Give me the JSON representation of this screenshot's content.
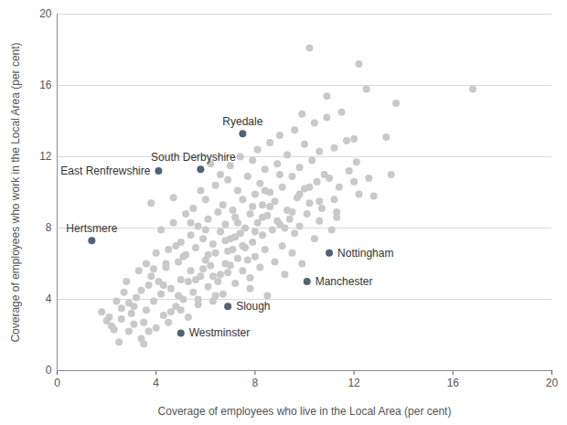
{
  "chart_data": {
    "type": "scatter",
    "x_label": "Coverage of employees who live in the Local Area (per cent)",
    "y_label": "Coverage of employees who work in the Local Area (per cent)",
    "xlim": [
      0,
      20
    ],
    "ylim": [
      0,
      20
    ],
    "xticks": [
      0,
      4,
      8,
      12,
      16,
      20
    ],
    "yticks": [
      0,
      4,
      8,
      12,
      16,
      20
    ],
    "grid": "y",
    "series": [
      {
        "color": "#c9c9c9",
        "marker": "circle",
        "x": [
          1.8,
          2.0,
          2.1,
          2.2,
          2.3,
          2.5,
          2.4,
          2.6,
          2.7,
          2.8,
          2.9,
          3.0,
          3.1,
          3.2,
          3.3,
          3.4,
          3.5,
          3.5,
          3.6,
          3.6,
          3.7,
          3.8,
          3.8,
          3.9,
          4.0,
          4.0,
          4.1,
          4.2,
          4.2,
          4.3,
          4.4,
          4.5,
          4.5,
          4.6,
          4.7,
          4.7,
          4.8,
          4.9,
          5.0,
          5.0,
          5.1,
          5.2,
          5.2,
          5.3,
          5.4,
          5.4,
          5.5,
          5.5,
          5.6,
          5.7,
          5.7,
          5.8,
          5.8,
          5.9,
          6.0,
          6.0,
          6.1,
          6.1,
          6.2,
          6.2,
          6.3,
          6.3,
          6.4,
          6.4,
          6.5,
          6.5,
          6.6,
          6.6,
          6.7,
          6.7,
          6.8,
          6.8,
          6.9,
          6.9,
          7.0,
          7.0,
          7.1,
          7.1,
          7.2,
          7.2,
          7.3,
          7.3,
          7.4,
          7.4,
          7.5,
          7.5,
          7.6,
          7.6,
          7.7,
          7.8,
          7.8,
          7.9,
          7.9,
          8.0,
          8.0,
          8.1,
          8.1,
          8.2,
          8.2,
          8.3,
          8.3,
          8.4,
          8.4,
          8.5,
          8.5,
          8.6,
          8.6,
          8.7,
          8.8,
          8.8,
          8.9,
          9.0,
          9.0,
          9.1,
          9.1,
          9.2,
          9.3,
          9.3,
          9.4,
          9.5,
          9.5,
          9.6,
          9.6,
          9.7,
          9.8,
          9.8,
          9.9,
          9.9,
          10.0,
          10.0,
          10.1,
          10.2,
          10.2,
          10.3,
          10.4,
          10.4,
          10.5,
          10.6,
          10.6,
          10.7,
          10.8,
          10.9,
          10.9,
          11.0,
          11.1,
          11.2,
          11.3,
          11.3,
          11.4,
          11.5,
          11.7,
          12.0,
          12.0,
          12.2,
          12.2,
          12.5,
          12.6,
          12.8,
          13.3,
          13.5,
          13.7,
          16.8,
          12.1,
          11.8,
          4.4,
          4.8,
          5.1,
          5.3,
          5.6,
          5.9,
          6.1,
          6.4,
          6.6,
          6.9,
          7.2,
          7.5,
          7.7,
          8.0,
          8.3,
          8.6,
          8.9,
          9.2,
          9.5,
          3.9,
          3.4,
          3.1,
          2.9,
          4.3,
          5.0,
          5.7,
          6.3,
          7.0,
          7.8,
          2.6,
          3.7,
          4.6,
          6.8,
          7.3,
          7.9,
          8.4,
          6.0,
          5.4,
          4.9,
          9.0,
          9.8,
          10.2,
          11.2,
          10.6
        ],
        "values": [
          3.3,
          2.8,
          3.0,
          2.5,
          2.3,
          1.6,
          3.9,
          3.5,
          4.4,
          5.0,
          3.8,
          3.2,
          2.6,
          4.1,
          5.6,
          1.8,
          1.5,
          2.7,
          3.4,
          6.0,
          4.8,
          5.3,
          9.4,
          3.9,
          2.4,
          6.6,
          5.0,
          7.9,
          4.3,
          3.1,
          5.8,
          6.8,
          2.7,
          4.6,
          8.3,
          9.7,
          3.6,
          6.1,
          7.2,
          5.1,
          4.0,
          8.8,
          6.5,
          3.0,
          7.6,
          5.6,
          9.1,
          4.4,
          6.9,
          8.1,
          3.7,
          10.1,
          5.3,
          7.4,
          6.2,
          9.6,
          4.7,
          8.5,
          11.6,
          5.9,
          7.1,
          3.9,
          10.4,
          6.6,
          8.9,
          5.0,
          7.8,
          11.0,
          4.3,
          9.3,
          6.0,
          8.2,
          10.7,
          5.5,
          7.4,
          11.5,
          6.8,
          9.0,
          4.9,
          8.6,
          10.1,
          6.3,
          7.7,
          12.0,
          5.6,
          9.6,
          8.0,
          6.9,
          10.9,
          4.6,
          8.8,
          7.2,
          11.8,
          9.9,
          6.4,
          12.4,
          8.3,
          5.8,
          10.5,
          7.6,
          9.3,
          11.3,
          6.8,
          8.7,
          4.2,
          10.0,
          12.8,
          7.9,
          9.5,
          6.1,
          11.6,
          8.2,
          13.2,
          10.3,
          7.0,
          5.4,
          9.0,
          12.1,
          8.5,
          10.9,
          6.6,
          13.5,
          7.7,
          9.7,
          11.4,
          8.1,
          14.4,
          6.0,
          10.2,
          12.7,
          8.8,
          18.1,
          9.4,
          11.8,
          7.4,
          13.9,
          10.6,
          8.4,
          12.3,
          9.1,
          11.0,
          15.4,
          14.2,
          10.8,
          7.9,
          12.5,
          8.9,
          8.6,
          10.3,
          14.5,
          12.9,
          13.0,
          10.6,
          17.2,
          9.9,
          15.8,
          10.8,
          9.8,
          13.1,
          11.0,
          15.0,
          15.8,
          11.7,
          11.2,
          6.0,
          7.0,
          6.4,
          5.0,
          5.1,
          5.7,
          6.5,
          4.2,
          5.4,
          6.7,
          7.5,
          7.0,
          6.2,
          7.8,
          8.6,
          9.2,
          8.4,
          8.0,
          8.9,
          5.7,
          4.5,
          3.6,
          2.2,
          4.8,
          3.4,
          4.0,
          5.3,
          5.9,
          5.2,
          2.9,
          2.2,
          3.3,
          7.3,
          8.3,
          9.2,
          10.1,
          7.9,
          8.3,
          4.2,
          11.0,
          9.9,
          10.3,
          9.6,
          9.5
        ]
      },
      {
        "color": "#4f6377",
        "marker": "circle",
        "x": [
          7.5,
          5.8,
          4.1,
          1.4,
          11.0,
          10.1,
          6.9,
          5.0
        ],
        "values": [
          13.3,
          11.3,
          11.2,
          7.3,
          6.6,
          5.0,
          3.6,
          2.1
        ],
        "point_labels": [
          "Ryedale",
          "South Derbyshire",
          "East Renfrewshire",
          "Hertsmere",
          "Nottingham",
          "Manchester",
          "Slough",
          "Westminster"
        ]
      }
    ]
  }
}
